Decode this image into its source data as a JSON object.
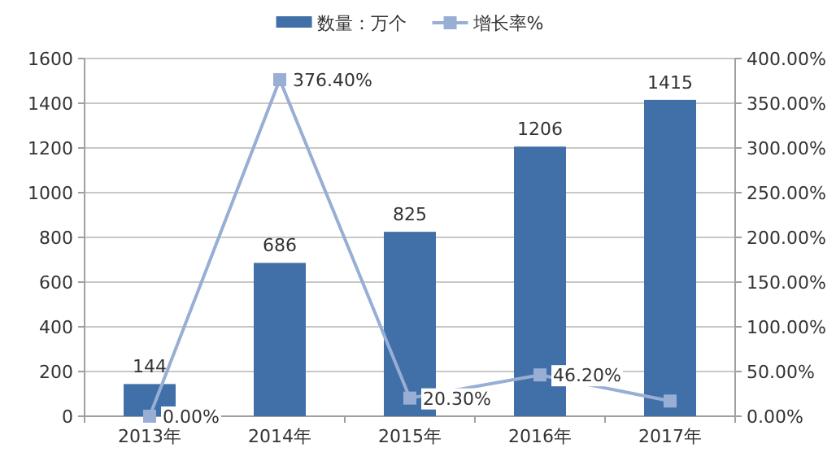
{
  "chart_data": {
    "type": "bar",
    "categories": [
      "2013年",
      "2014年",
      "2015年",
      "2016年",
      "2017年"
    ],
    "series": [
      {
        "name": "数量：万个",
        "color": "#4170a8",
        "values": [
          144,
          686,
          825,
          1206,
          1415
        ]
      },
      {
        "name": "增长率%",
        "type": "line",
        "axis": "y2",
        "color": "#98aed4",
        "marker": "square",
        "values": [
          0,
          376.4,
          20.3,
          46.2,
          17
        ],
        "value_labels": [
          "0.00%",
          "376.40%",
          "20.30%",
          "46.20%",
          null
        ]
      }
    ],
    "ylim": [
      0,
      1600
    ],
    "yticks": [
      0,
      200,
      400,
      600,
      800,
      1000,
      1200,
      1400,
      1600
    ],
    "y2lim": [
      0,
      400
    ],
    "y2ticks": [
      {
        "value": 0,
        "label": "0.00%"
      },
      {
        "value": 50,
        "label": "50.00%"
      },
      {
        "value": 100,
        "label": "100.00%"
      },
      {
        "value": 150,
        "label": "150.00%"
      },
      {
        "value": 200,
        "label": "200.00%"
      },
      {
        "value": 250,
        "label": "250.00%"
      },
      {
        "value": 300,
        "label": "300.00%"
      },
      {
        "value": 350,
        "label": "350.00%"
      },
      {
        "value": 400,
        "label": "400.00%"
      }
    ],
    "data_labels": true,
    "grid": "y",
    "legend": "top"
  }
}
